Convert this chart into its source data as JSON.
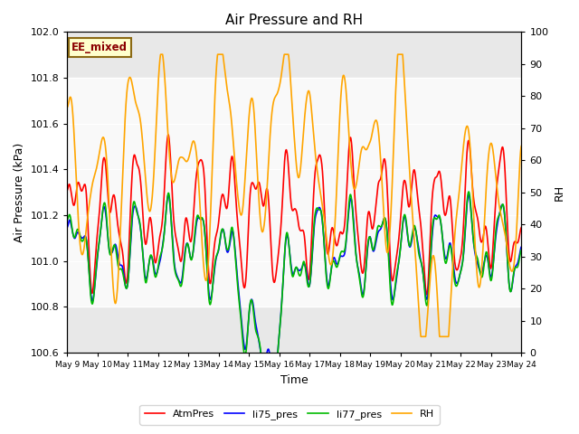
{
  "title": "Air Pressure and RH",
  "xlabel": "Time",
  "ylabel_left": "Air Pressure (kPa)",
  "ylabel_right": "RH",
  "ylim_left": [
    100.6,
    102.0
  ],
  "ylim_right": [
    0,
    100
  ],
  "yticks_left": [
    100.6,
    100.8,
    101.0,
    101.2,
    101.4,
    101.6,
    101.8,
    102.0
  ],
  "yticks_right": [
    0,
    10,
    20,
    30,
    40,
    50,
    60,
    70,
    80,
    90,
    100
  ],
  "shade_region": [
    100.8,
    101.8
  ],
  "annotation_text": "EE_mixed",
  "annotation_color": "#8B0000",
  "annotation_bg": "#FFFFCC",
  "annotation_border": "#8B6914",
  "line_colors": {
    "AtmPres": "#FF0000",
    "li75_pres": "#0000FF",
    "li77_pres": "#00BB00",
    "RH": "#FFA500"
  },
  "line_widths": {
    "AtmPres": 1.2,
    "li75_pres": 1.2,
    "li77_pres": 1.2,
    "RH": 1.2
  },
  "xtick_labels": [
    "May 9",
    "May 10",
    "May 11",
    "May 12",
    "May 13",
    "May 14",
    "May 15",
    "May 16",
    "May 17",
    "May 18",
    "May 19",
    "May 20",
    "May 21",
    "May 22",
    "May 23",
    "May 24"
  ],
  "background_color": "#FFFFFF",
  "plot_bg_color": "#E8E8E8"
}
